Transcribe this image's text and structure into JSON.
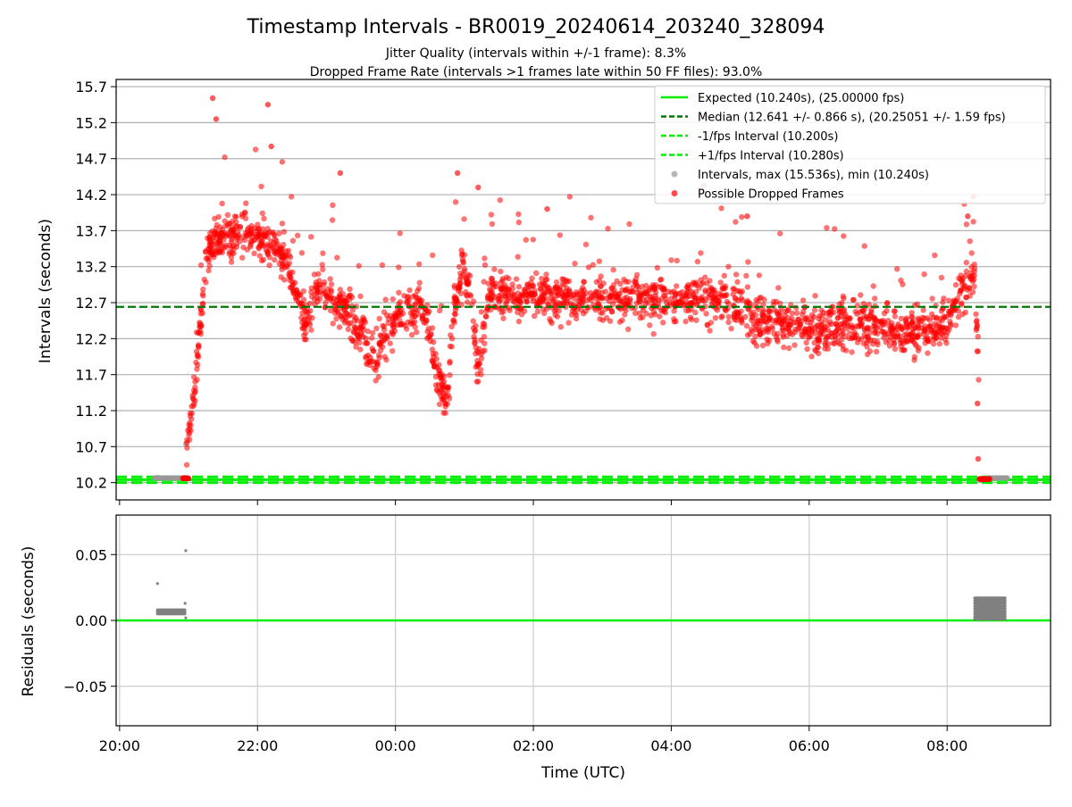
{
  "chart_data": [
    {
      "type": "scatter",
      "title": "Timestamp Intervals - BR0019_20240614_203240_328094",
      "subtitle_lines": [
        "Jitter Quality (intervals within +/-1 frame): 8.3%",
        "Dropped Frame Rate (intervals >1 frames late within 50 FF files): 93.0%"
      ],
      "ylabel": "Intervals (seconds)",
      "xlim_hours": [
        19.95,
        33.5
      ],
      "ylim": [
        9.96,
        15.8
      ],
      "yticks": [
        10.2,
        10.7,
        11.2,
        11.7,
        12.2,
        12.7,
        13.2,
        13.7,
        14.2,
        14.7,
        15.2,
        15.7
      ],
      "ytick_labels": [
        "10.2",
        "10.7",
        "11.2",
        "11.7",
        "12.2",
        "12.7",
        "13.2",
        "13.7",
        "14.2",
        "14.7",
        "15.2",
        "15.7"
      ],
      "grid": "horizontal",
      "legend_position": "top-right",
      "lines": {
        "expected": {
          "y": 10.24,
          "color": "#00ee00",
          "label": "Expected (10.240s), (25.00000 fps)"
        },
        "median": {
          "y": 12.641,
          "color": "#007700",
          "label": "Median (12.641 +/- 0.866 s), (20.25051 +/- 1.59 fps)"
        },
        "minus_fps": {
          "y": 10.2,
          "color": "#00ee00",
          "label": "-1/fps Interval (10.200s)"
        },
        "plus_fps": {
          "y": 10.28,
          "color": "#00ee00",
          "label": "+1/fps Interval (10.280s)"
        }
      },
      "series": [
        {
          "name": "Intervals, max (15.536s), min (10.240s)",
          "color": "#999999",
          "label": "Intervals, max (15.536s), min (10.240s)"
        },
        {
          "name": "Possible Dropped Frames",
          "color": "#ff0000",
          "label": "Possible Dropped Frames"
        }
      ],
      "trend_profile": [
        [
          20.0,
          10.24
        ],
        [
          20.95,
          10.26
        ],
        [
          21.0,
          10.9
        ],
        [
          21.12,
          11.8
        ],
        [
          21.25,
          13.3
        ],
        [
          21.4,
          13.6
        ],
        [
          21.6,
          13.6
        ],
        [
          21.8,
          13.7
        ],
        [
          22.0,
          13.55
        ],
        [
          22.2,
          13.5
        ],
        [
          22.4,
          13.3
        ],
        [
          22.55,
          12.9
        ],
        [
          22.7,
          12.4
        ],
        [
          22.85,
          12.9
        ],
        [
          23.0,
          12.8
        ],
        [
          23.2,
          12.7
        ],
        [
          23.35,
          12.5
        ],
        [
          23.5,
          12.3
        ],
        [
          23.7,
          11.9
        ],
        [
          23.85,
          12.2
        ],
        [
          24.0,
          12.5
        ],
        [
          24.2,
          12.6
        ],
        [
          24.4,
          12.6
        ],
        [
          24.5,
          12.3
        ],
        [
          24.6,
          11.6
        ],
        [
          24.75,
          11.4
        ],
        [
          24.85,
          12.6
        ],
        [
          25.0,
          13.2
        ],
        [
          25.1,
          12.7
        ],
        [
          25.2,
          11.7
        ],
        [
          25.35,
          12.8
        ],
        [
          26.0,
          12.8
        ],
        [
          27.0,
          12.75
        ],
        [
          28.0,
          12.75
        ],
        [
          28.8,
          12.75
        ],
        [
          29.2,
          12.5
        ],
        [
          30.0,
          12.35
        ],
        [
          30.5,
          12.4
        ],
        [
          31.0,
          12.35
        ],
        [
          31.5,
          12.3
        ],
        [
          32.0,
          12.4
        ],
        [
          32.2,
          12.9
        ],
        [
          32.4,
          13.0
        ],
        [
          32.45,
          12.0
        ],
        [
          32.48,
          10.26
        ],
        [
          32.6,
          10.25
        ]
      ],
      "drop_ranges": [
        [
          20.97,
          32.46
        ],
        [
          32.5,
          32.62
        ]
      ],
      "possible_dropped_frames": [
        [
          21.35,
          15.54
        ],
        [
          21.4,
          15.25
        ],
        [
          22.15,
          15.45
        ],
        [
          22.2,
          14.87
        ],
        [
          23.2,
          14.5
        ],
        [
          24.9,
          14.5
        ],
        [
          25.2,
          14.3
        ],
        [
          26.2,
          14.0
        ],
        [
          29.1,
          13.9
        ],
        [
          32.3,
          13.9
        ],
        [
          32.44,
          11.3
        ],
        [
          32.45,
          10.53
        ]
      ],
      "grey_points": [
        [
          20.55,
          10.27
        ],
        [
          20.95,
          10.27
        ],
        [
          20.96,
          10.74
        ],
        [
          32.7,
          10.26
        ],
        [
          32.85,
          10.26
        ]
      ]
    },
    {
      "type": "scatter",
      "title": "",
      "xlabel": "Time (UTC)",
      "ylabel": "Residuals (seconds)",
      "ylim": [
        -0.08,
        0.08
      ],
      "yticks": [
        -0.05,
        0.0,
        0.05
      ],
      "ytick_labels": [
        "−0.05",
        "0.00",
        "0.05"
      ],
      "xticks_hours": [
        20,
        22,
        24,
        26,
        28,
        30,
        32
      ],
      "xtick_labels": [
        "20:00",
        "22:00",
        "00:00",
        "02:00",
        "04:00",
        "06:00",
        "08:00"
      ],
      "grid": "both",
      "zero_line_color": "#00ee00",
      "series": [
        {
          "name": "Residuals",
          "color": "#808080",
          "points": [
            [
              20.55,
              0.028
            ],
            [
              20.96,
              0.053
            ],
            [
              20.95,
              0.013
            ],
            [
              20.96,
              0.002
            ]
          ],
          "bands": [
            {
              "x_range": [
                20.55,
                20.95
              ],
              "values": [
                0.005,
                0.006,
                0.007,
                0.008
              ]
            },
            {
              "x_range": [
                32.4,
                32.85
              ],
              "values": [
                0.001,
                0.003,
                0.005,
                0.007,
                0.009,
                0.011,
                0.013,
                0.015,
                0.017
              ]
            }
          ]
        }
      ]
    }
  ]
}
